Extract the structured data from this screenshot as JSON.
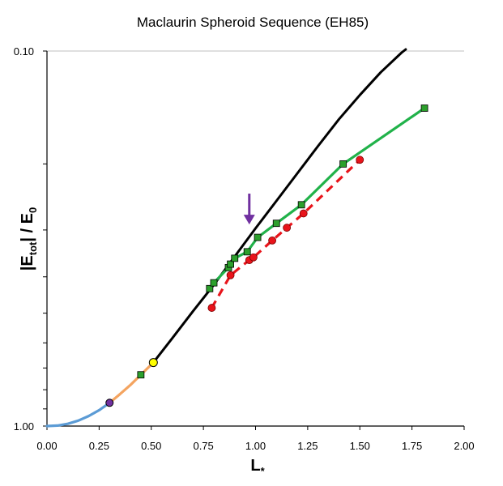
{
  "chart_data": {
    "type": "line",
    "title": "Maclaurin Spheroid Sequence (EH85)",
    "xlabel": "L",
    "xlabel_subscript": "*",
    "ylabel": "|E",
    "ylabel_subscript": "tot",
    "ylabel_mid": "| / E",
    "ylabel_subscript2": "0",
    "xlim": [
      0,
      2
    ],
    "ylim_log": [
      1.0,
      0.1
    ],
    "y_scale": "log-inverted",
    "x_ticks": [
      {
        "v": 0.0,
        "label": "0.00"
      },
      {
        "v": 0.25,
        "label": "0.25"
      },
      {
        "v": 0.5,
        "label": "0.50"
      },
      {
        "v": 0.75,
        "label": "0.75"
      },
      {
        "v": 1.0,
        "label": "1.00"
      },
      {
        "v": 1.25,
        "label": "1.25"
      },
      {
        "v": 1.5,
        "label": "1.50"
      },
      {
        "v": 1.75,
        "label": "1.75"
      },
      {
        "v": 2.0,
        "label": "2.00"
      }
    ],
    "y_major_ticks": [
      {
        "v": 1.0,
        "label": "1.00"
      },
      {
        "v": 0.1,
        "label": "0.10"
      }
    ],
    "y_minor_ticks": [
      0.9,
      0.8,
      0.7,
      0.6,
      0.5,
      0.4,
      0.3,
      0.2
    ],
    "colors": {
      "blue": "#5b9bd5",
      "orange": "#f4a460",
      "black": "#000000",
      "green": "#21b24a",
      "green_marker": "#2ca02c",
      "red": "#e8141b",
      "purple": "#7030a0",
      "yellow": "#ffff00",
      "gridline": "#bfbfbf"
    },
    "series": [
      {
        "name": "maclaurin-blue",
        "style": "solid",
        "color": "blue",
        "x": [
          0.0,
          0.05,
          0.1,
          0.15,
          0.2,
          0.25,
          0.3
        ],
        "y": [
          1.0,
          0.997,
          0.986,
          0.967,
          0.94,
          0.907,
          0.867
        ]
      },
      {
        "name": "maclaurin-orange",
        "style": "solid",
        "color": "orange",
        "x": [
          0.3,
          0.35,
          0.4,
          0.45,
          0.51
        ],
        "y": [
          0.867,
          0.822,
          0.777,
          0.73,
          0.677
        ]
      },
      {
        "name": "maclaurin-black",
        "style": "solid",
        "color": "black",
        "x": [
          0.51,
          0.6,
          0.7,
          0.8,
          0.9,
          1.0,
          1.1,
          1.2,
          1.3,
          1.4,
          1.5,
          1.6,
          1.7,
          1.72
        ],
        "y": [
          0.677,
          0.584,
          0.494,
          0.42,
          0.353,
          0.297,
          0.251,
          0.212,
          0.179,
          0.152,
          0.131,
          0.114,
          0.101,
          0.099
        ]
      },
      {
        "name": "green-sequence",
        "style": "solid",
        "color": "green",
        "marker": "square",
        "x": [
          0.78,
          0.8,
          0.87,
          0.88,
          0.9,
          0.96,
          1.01,
          1.1,
          1.22,
          1.42,
          1.81
        ],
        "y": [
          0.43,
          0.415,
          0.378,
          0.37,
          0.357,
          0.343,
          0.314,
          0.288,
          0.257,
          0.2,
          0.142
        ]
      },
      {
        "name": "red-sequence",
        "style": "dashed",
        "color": "red",
        "marker": "circle",
        "x": [
          0.79,
          0.88,
          0.97,
          0.99,
          1.08,
          1.15,
          1.23,
          1.5
        ],
        "y": [
          0.484,
          0.396,
          0.361,
          0.355,
          0.32,
          0.296,
          0.271,
          0.195
        ]
      }
    ],
    "special_points": [
      {
        "name": "purple-point",
        "x": 0.3,
        "y": 0.867,
        "color": "purple",
        "shape": "circle"
      },
      {
        "name": "green-square-point",
        "x": 0.45,
        "y": 0.73,
        "color": "green_marker",
        "shape": "square"
      },
      {
        "name": "yellow-point",
        "x": 0.51,
        "y": 0.677,
        "color": "yellow",
        "shape": "circle"
      }
    ],
    "arrow": {
      "x": 0.97,
      "y_from": 0.24,
      "y_to": 0.29,
      "color": "purple"
    }
  }
}
